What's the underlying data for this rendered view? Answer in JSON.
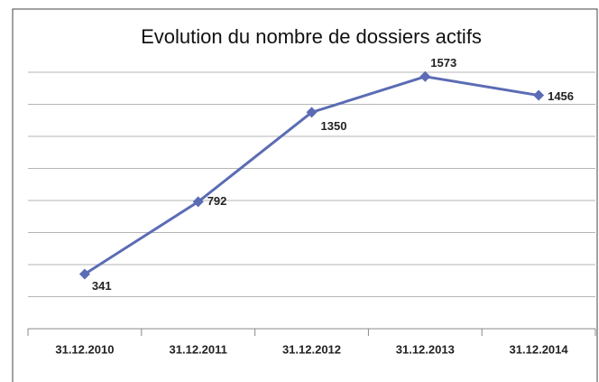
{
  "chart_data": {
    "type": "line",
    "title": "Evolution du nombre de dossiers actifs",
    "categories": [
      "31.12.2010",
      "31.12.2011",
      "31.12.2012",
      "31.12.2013",
      "31.12.2014"
    ],
    "series": [
      {
        "name": "Dossiers actifs",
        "color": "#5b6cb4",
        "values": [
          341,
          792,
          1350,
          1573,
          1456
        ]
      }
    ],
    "ylim": [
      0,
      1600
    ],
    "yticks": [
      0,
      200,
      400,
      600,
      800,
      1000,
      1200,
      1400,
      1600
    ],
    "grid": true
  }
}
